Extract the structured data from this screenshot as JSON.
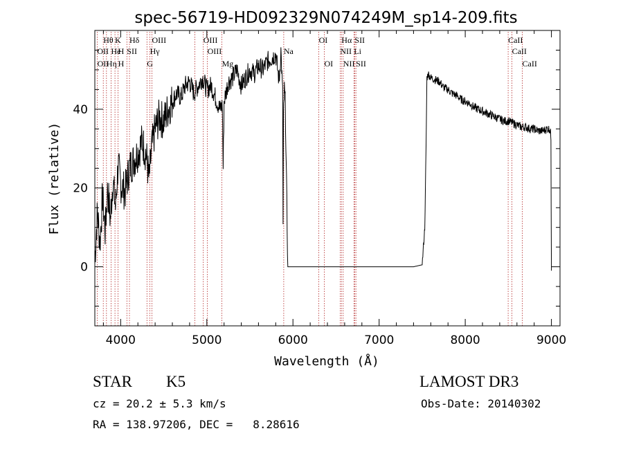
{
  "chart_data": {
    "type": "line",
    "title": "spec-56719-HD092329N074249M_sp14-209.fits",
    "xlabel": "Wavelength (Å)",
    "ylabel": "Flux (relative)",
    "xlim": [
      3700,
      9100
    ],
    "ylim": [
      -15,
      60
    ],
    "x_ticks": [
      4000,
      5000,
      6000,
      7000,
      8000,
      9000
    ],
    "y_ticks": [
      0,
      20,
      40
    ],
    "series": [
      {
        "name": "spectrum",
        "x": [
          3700,
          3730,
          3760,
          3790,
          3820,
          3850,
          3880,
          3910,
          3940,
          3970,
          4000,
          4050,
          4100,
          4150,
          4200,
          4250,
          4300,
          4330,
          4360,
          4400,
          4450,
          4500,
          4550,
          4600,
          4650,
          4700,
          4750,
          4800,
          4850,
          4900,
          4950,
          5000,
          5050,
          5100,
          5150,
          5180,
          5190,
          5200,
          5220,
          5250,
          5300,
          5350,
          5400,
          5450,
          5500,
          5550,
          5600,
          5650,
          5700,
          5750,
          5800,
          5840,
          5860,
          5880,
          5885,
          5890,
          5895,
          5900,
          5910,
          5940,
          6000,
          6500,
          7000,
          7200,
          7300,
          7400,
          7500,
          7530,
          7545,
          7555,
          7570,
          7600,
          7650,
          7700,
          7750,
          7800,
          7850,
          7900,
          7950,
          8000,
          8050,
          8100,
          8150,
          8200,
          8250,
          8300,
          8350,
          8400,
          8450,
          8500,
          8550,
          8600,
          8650,
          8700,
          8750,
          8800,
          8850,
          8900,
          8950,
          8980,
          8990,
          8995,
          9000
        ],
        "y": [
          2,
          14,
          6,
          18,
          9,
          20,
          12,
          22,
          15,
          26,
          21,
          19,
          25,
          27,
          29,
          32,
          28,
          22,
          30,
          35,
          38,
          37,
          40,
          42,
          44,
          43,
          46,
          47,
          44,
          46,
          48,
          45,
          46,
          43,
          40,
          41,
          25,
          42,
          44,
          47,
          48,
          50,
          46,
          48,
          50,
          49,
          51,
          50,
          52,
          53,
          54,
          47,
          55,
          44,
          10,
          38,
          41,
          45,
          42,
          0,
          0,
          0,
          0,
          0,
          0,
          0,
          0.5,
          10,
          30,
          48,
          49,
          48,
          47.5,
          47,
          45.5,
          45,
          44,
          43.5,
          42.5,
          42,
          41.5,
          40.5,
          40,
          39.5,
          39,
          38.5,
          38,
          37.5,
          37,
          37,
          36.5,
          36,
          35.5,
          35.5,
          35,
          35,
          34.5,
          34.5,
          35,
          35,
          34,
          33,
          -1
        ]
      }
    ],
    "line_labels": [
      {
        "text": "Hθ",
        "wl": 3798,
        "row": 1
      },
      {
        "text": "K",
        "wl": 3934,
        "row": 1
      },
      {
        "text": "Hδ",
        "wl": 4102,
        "row": 1
      },
      {
        "text": "OIII",
        "wl": 4363,
        "row": 1
      },
      {
        "text": "OIII",
        "wl": 4959,
        "row": 1
      },
      {
        "text": "OI",
        "wl": 6300,
        "row": 1
      },
      {
        "text": "Hα",
        "wl": 6563,
        "row": 1
      },
      {
        "text": "SII",
        "wl": 6717,
        "row": 1
      },
      {
        "text": "CaII",
        "wl": 8498,
        "row": 1
      },
      {
        "text": "OII",
        "wl": 3727,
        "row": 2
      },
      {
        "text": "He",
        "wl": 3889,
        "row": 2
      },
      {
        "text": "H",
        "wl": 3970,
        "row": 2
      },
      {
        "text": "SII",
        "wl": 4072,
        "row": 2
      },
      {
        "text": "Hγ",
        "wl": 4340,
        "row": 2
      },
      {
        "text": "OIII",
        "wl": 5007,
        "row": 2
      },
      {
        "text": "Na",
        "wl": 5893,
        "row": 2
      },
      {
        "text": "NII",
        "wl": 6548,
        "row": 2
      },
      {
        "text": "Li",
        "wl": 6708,
        "row": 2
      },
      {
        "text": "CaII",
        "wl": 8542,
        "row": 2
      },
      {
        "text": "OII",
        "wl": 3729,
        "row": 3
      },
      {
        "text": "Hη",
        "wl": 3835,
        "row": 3
      },
      {
        "text": "H",
        "wl": 3970,
        "row": 3
      },
      {
        "text": "G",
        "wl": 4305,
        "row": 3
      },
      {
        "text": "Mg",
        "wl": 5175,
        "row": 3
      },
      {
        "text": "OI",
        "wl": 6364,
        "row": 3
      },
      {
        "text": "NII",
        "wl": 6583,
        "row": 3
      },
      {
        "text": "SII",
        "wl": 6731,
        "row": 3
      },
      {
        "text": "CaII",
        "wl": 8662,
        "row": 3
      }
    ],
    "marker_lines": [
      3727,
      3798,
      3835,
      3889,
      3934,
      3970,
      4072,
      4102,
      4305,
      4340,
      4363,
      4861,
      4959,
      5007,
      5175,
      5893,
      6300,
      6364,
      6548,
      6563,
      6583,
      6708,
      6717,
      6731,
      8498,
      8542,
      8662
    ]
  },
  "captions": {
    "object_class": "STAR",
    "subclass": "K5",
    "survey": "LAMOST DR3",
    "redshift": "cz = 20.2 ± 5.3 km/s",
    "obs_date": "Obs-Date: 20140302",
    "coords": "RA = 138.97206, DEC =   8.28616"
  },
  "colors": {
    "line": "#000000",
    "markers": "#b22222"
  }
}
